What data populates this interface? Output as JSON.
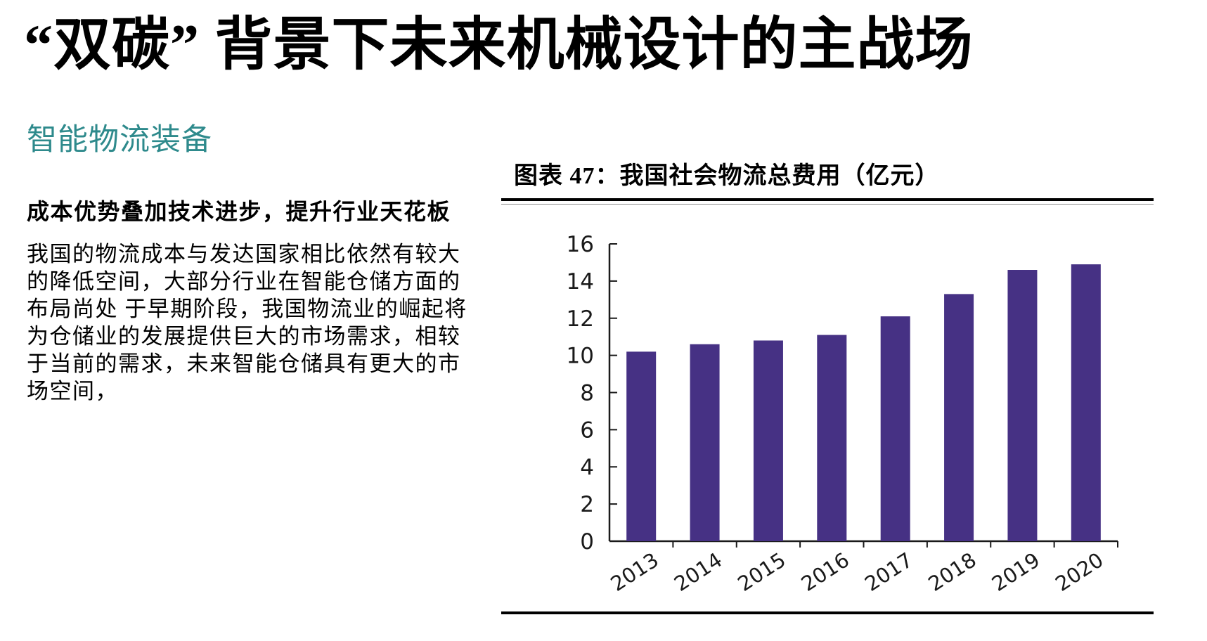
{
  "page": {
    "title": "“双碳” 背景下未来机械设计的主战场",
    "section_heading": "智能物流装备",
    "bold_subheading": "成本优势叠加技术进步，提升行业天花板",
    "paragraph": "我国的物流成本与发达国家相比依然有较大\n的降低空间，大部分行业在智能仓储方面的\n布局尚处 于早期阶段，我国物流业的崛起将\n为仓储业的发展提供巨大的市场需求，相较\n于当前的需求，未来智能仓储具有更大的市\n场空间，"
  },
  "figure": {
    "title": "图表 47：我国社会物流总费用（亿元）"
  },
  "chart_data": {
    "type": "bar",
    "title": "图表 47：我国社会物流总费用（亿元）",
    "categories": [
      "2013",
      "2014",
      "2015",
      "2016",
      "2017",
      "2018",
      "2019",
      "2020"
    ],
    "values": [
      10.2,
      10.6,
      10.8,
      11.1,
      12.1,
      13.3,
      14.6,
      14.9
    ],
    "xlabel": "",
    "ylabel": "",
    "ylim": [
      0,
      16
    ],
    "ytick_step": 2,
    "bar_color": "#463184",
    "axis_color": "#1a1a1a",
    "grid": false,
    "legend": "none",
    "x_label_rotation_deg": -33
  },
  "colors": {
    "accent_teal": "#2e8a8c",
    "bar_purple": "#463184",
    "text": "#000000"
  }
}
